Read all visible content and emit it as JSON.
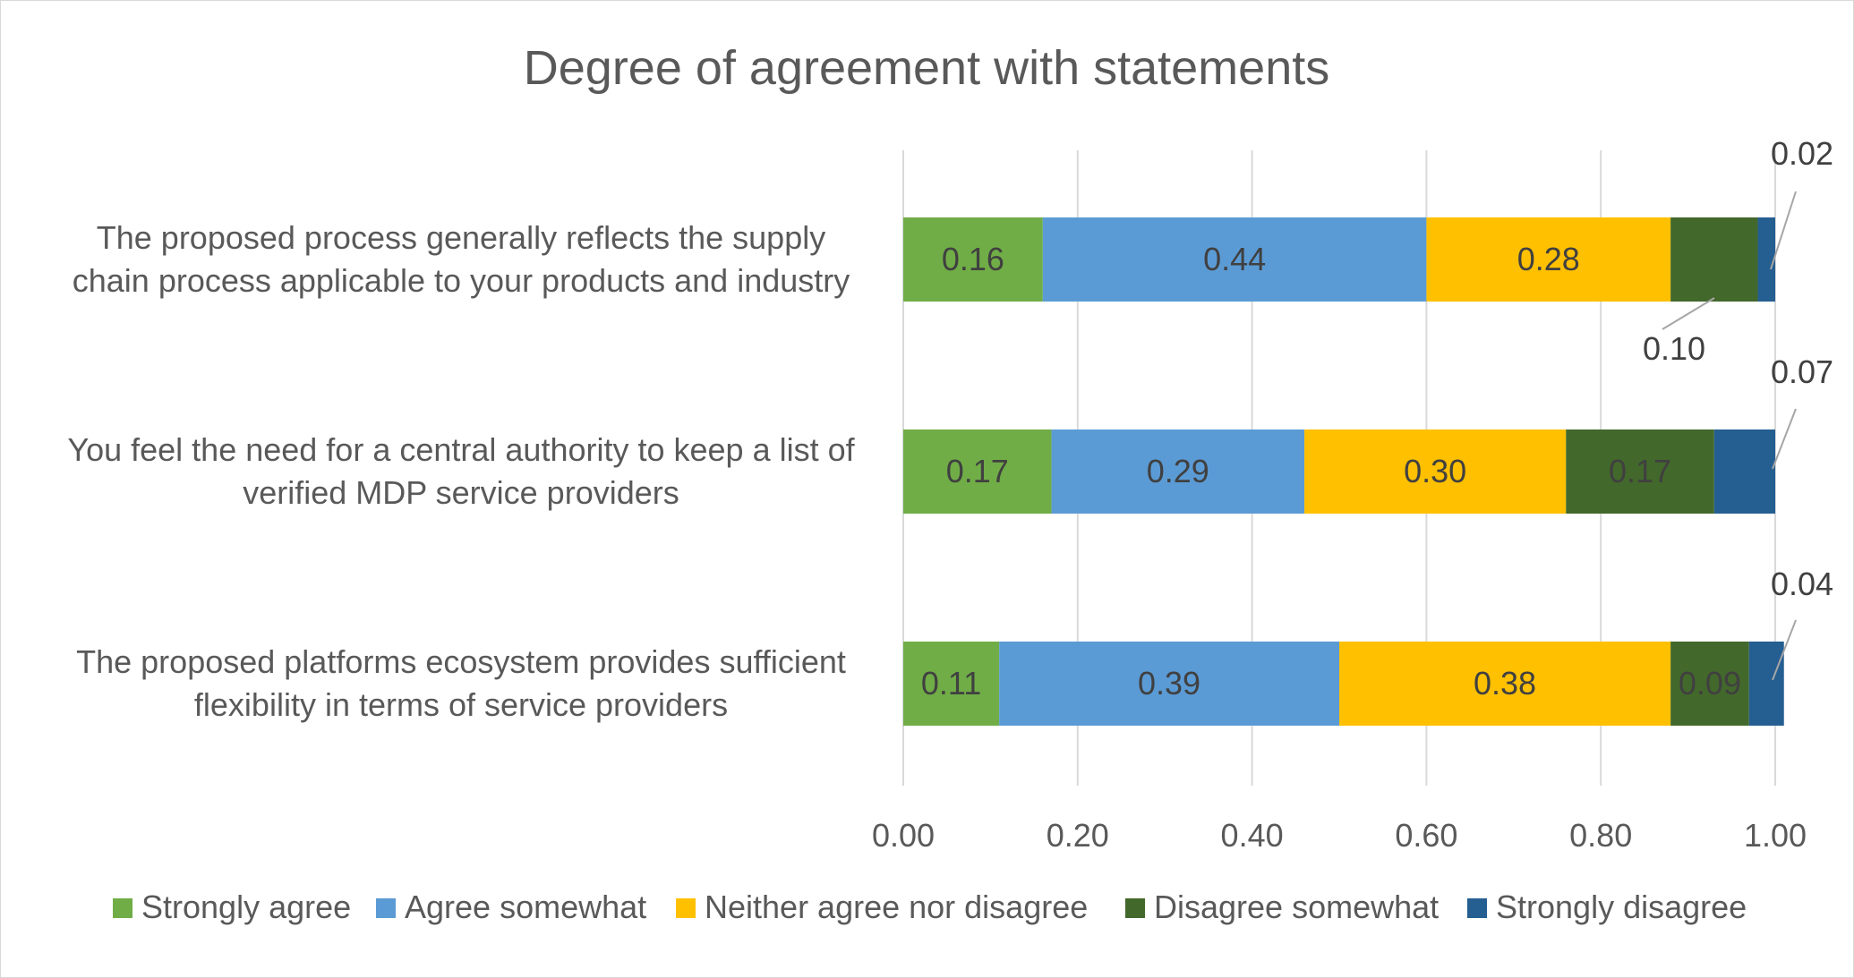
{
  "chart_data": {
    "type": "bar",
    "orientation": "horizontal",
    "stacked": true,
    "title": "Degree of agreement with statements",
    "categories": [
      [
        "The proposed process generally reflects the supply",
        "chain process applicable to your products and industry"
      ],
      [
        "You feel the need for a central authority to keep a list of",
        "verified MDP service providers"
      ],
      [
        "The proposed platforms ecosystem provides sufficient",
        "flexibility in terms of service providers"
      ]
    ],
    "series": [
      {
        "name": "Strongly agree",
        "color": "#70ad47",
        "values": [
          0.16,
          0.17,
          0.11
        ],
        "labels": [
          "0.16",
          "0.17",
          "0.11"
        ]
      },
      {
        "name": "Agree somewhat",
        "color": "#5b9bd5",
        "values": [
          0.44,
          0.29,
          0.39
        ],
        "labels": [
          "0.44",
          "0.29",
          "0.39"
        ]
      },
      {
        "name": "Neither agree nor disagree",
        "color": "#ffc000",
        "values": [
          0.28,
          0.3,
          0.38
        ],
        "labels": [
          "0.28",
          "0.30",
          "0.38"
        ]
      },
      {
        "name": "Disagree somewhat",
        "color": "#43682b",
        "values": [
          0.1,
          0.17,
          0.09
        ],
        "labels": [
          "0.10",
          "0.17",
          "0.09"
        ]
      },
      {
        "name": "Strongly disagree",
        "color": "#255e91",
        "values": [
          0.02,
          0.07,
          0.04
        ],
        "labels": [
          "0.02",
          "0.07",
          "0.04"
        ]
      }
    ],
    "xlim": [
      0,
      1.0
    ],
    "xticks": [
      "0.00",
      "0.20",
      "0.40",
      "0.60",
      "0.80",
      "1.00"
    ],
    "grid": true,
    "legend_position": "bottom"
  }
}
